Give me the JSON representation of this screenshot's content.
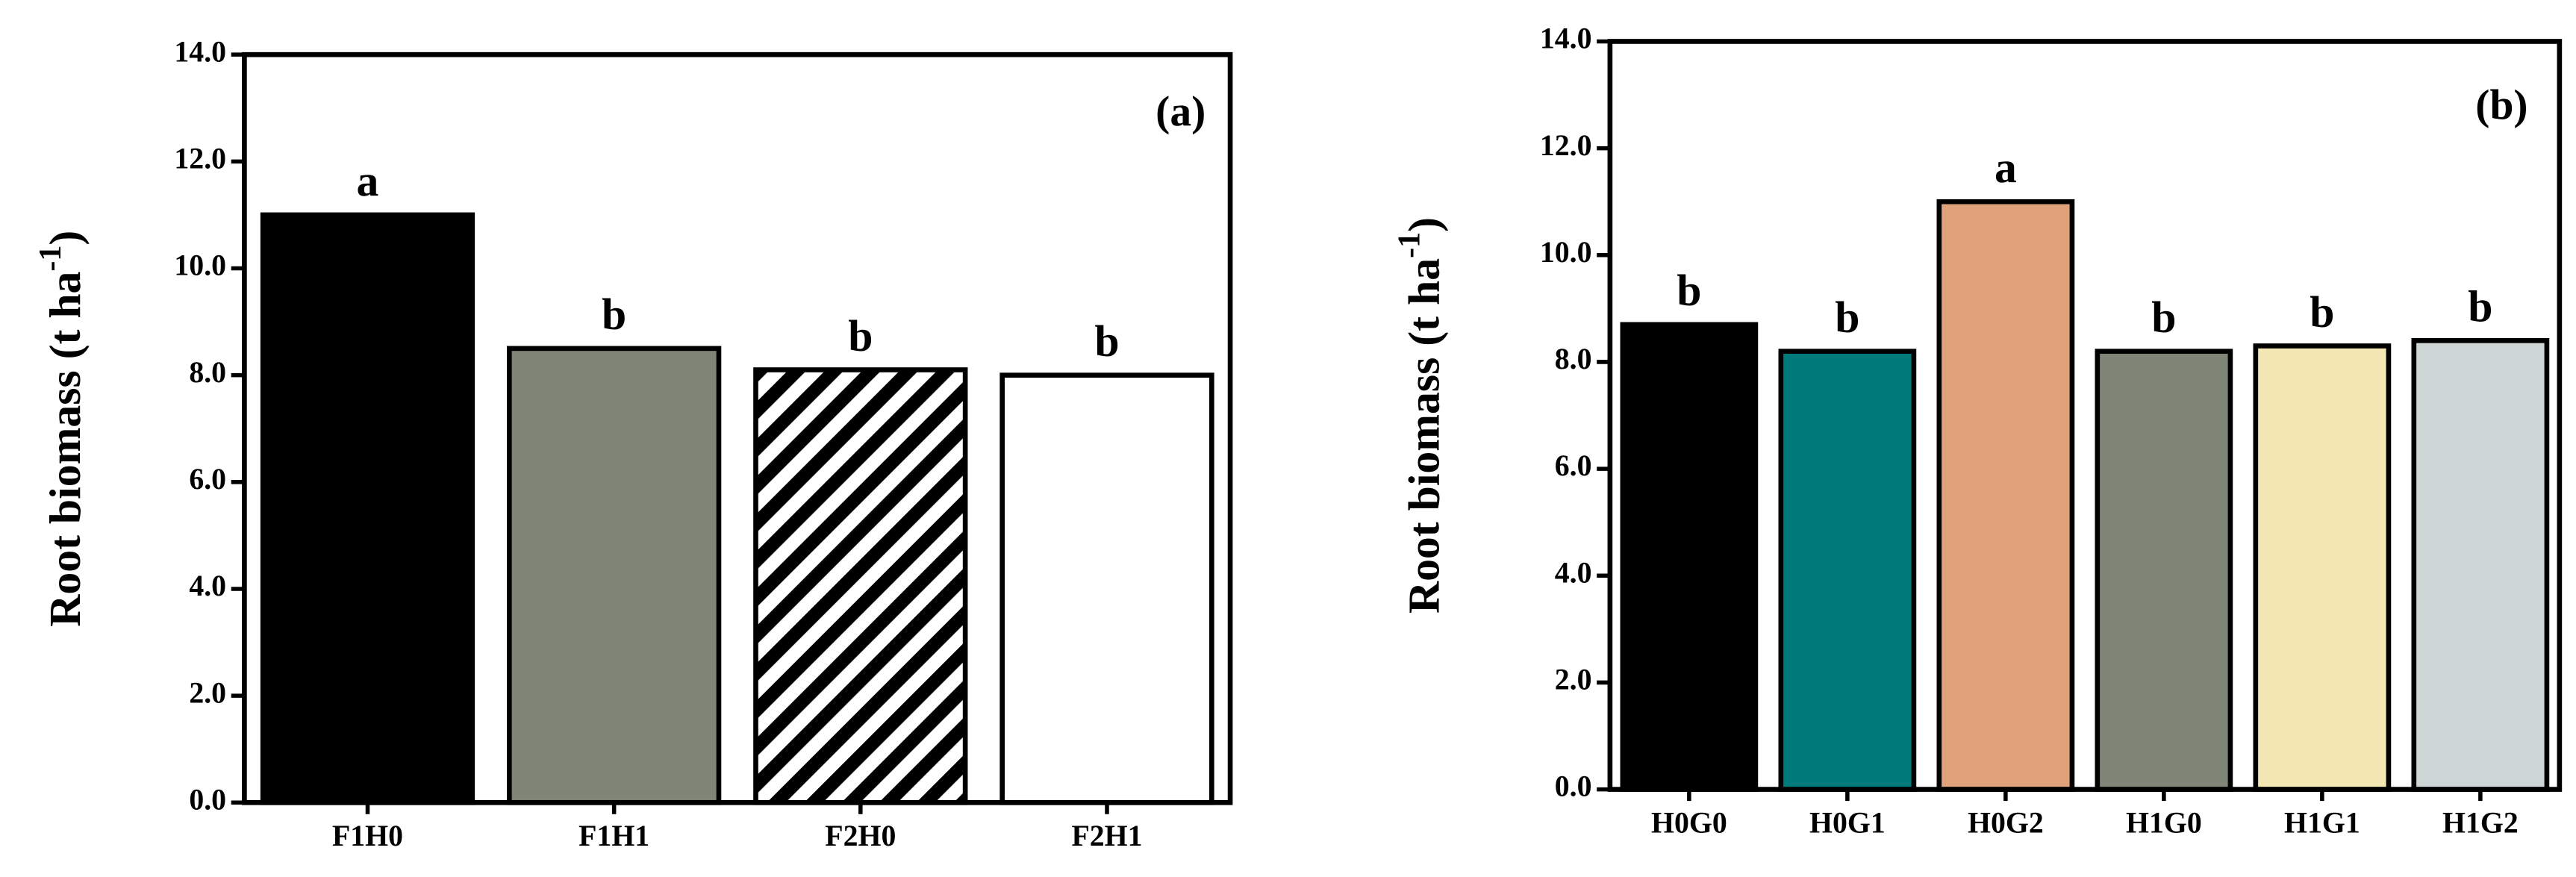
{
  "chart_data": [
    {
      "type": "bar",
      "panel_label": "(a)",
      "ylabel_parts": [
        "Root biomass (t ha",
        "-1",
        ")"
      ],
      "categories": [
        "F1H0",
        "F1H1",
        "F2H0",
        "F2H1"
      ],
      "values": [
        11.0,
        8.5,
        8.1,
        8.0
      ],
      "colors": [
        "#000000",
        "#7f8677",
        "#ffffff",
        "#ffffff"
      ],
      "hatch": [
        false,
        false,
        true,
        false
      ],
      "annotations": [
        "a",
        "b",
        "b",
        "b"
      ],
      "ylim": [
        0,
        14
      ],
      "yticks": [
        {
          "value": 0,
          "label": "0.0"
        },
        {
          "value": 2,
          "label": "2.0"
        },
        {
          "value": 4,
          "label": "4.0"
        },
        {
          "value": 6,
          "label": "6.0"
        },
        {
          "value": 8,
          "label": "8.0"
        },
        {
          "value": 10,
          "label": "10.0"
        },
        {
          "value": 12,
          "label": "12.0"
        },
        {
          "value": 14,
          "label": "14.0"
        }
      ]
    },
    {
      "type": "bar",
      "panel_label": "(b)",
      "ylabel_parts": [
        "Root biomass (t ha",
        "-1",
        ")"
      ],
      "categories": [
        "H0G0",
        "H0G1",
        "H0G2",
        "H1G0",
        "H1G1",
        "H1G2"
      ],
      "values": [
        8.7,
        8.2,
        11.0,
        8.2,
        8.3,
        8.4
      ],
      "colors": [
        "#000000",
        "#007b7b",
        "#e0a27a",
        "#7f8677",
        "#f3e8b4",
        "#cfd6d6"
      ],
      "hatch": [
        false,
        false,
        false,
        false,
        false,
        false
      ],
      "annotations": [
        "b",
        "b",
        "a",
        "b",
        "b",
        "b"
      ],
      "ylim": [
        0,
        14
      ],
      "yticks": [
        {
          "value": 0,
          "label": "0.0"
        },
        {
          "value": 2,
          "label": "2.0"
        },
        {
          "value": 4,
          "label": "4.0"
        },
        {
          "value": 6,
          "label": "6.0"
        },
        {
          "value": 8,
          "label": "8.0"
        },
        {
          "value": 10,
          "label": "10.0"
        },
        {
          "value": 12,
          "label": "12.0"
        },
        {
          "value": 14,
          "label": "14.0"
        }
      ]
    }
  ]
}
